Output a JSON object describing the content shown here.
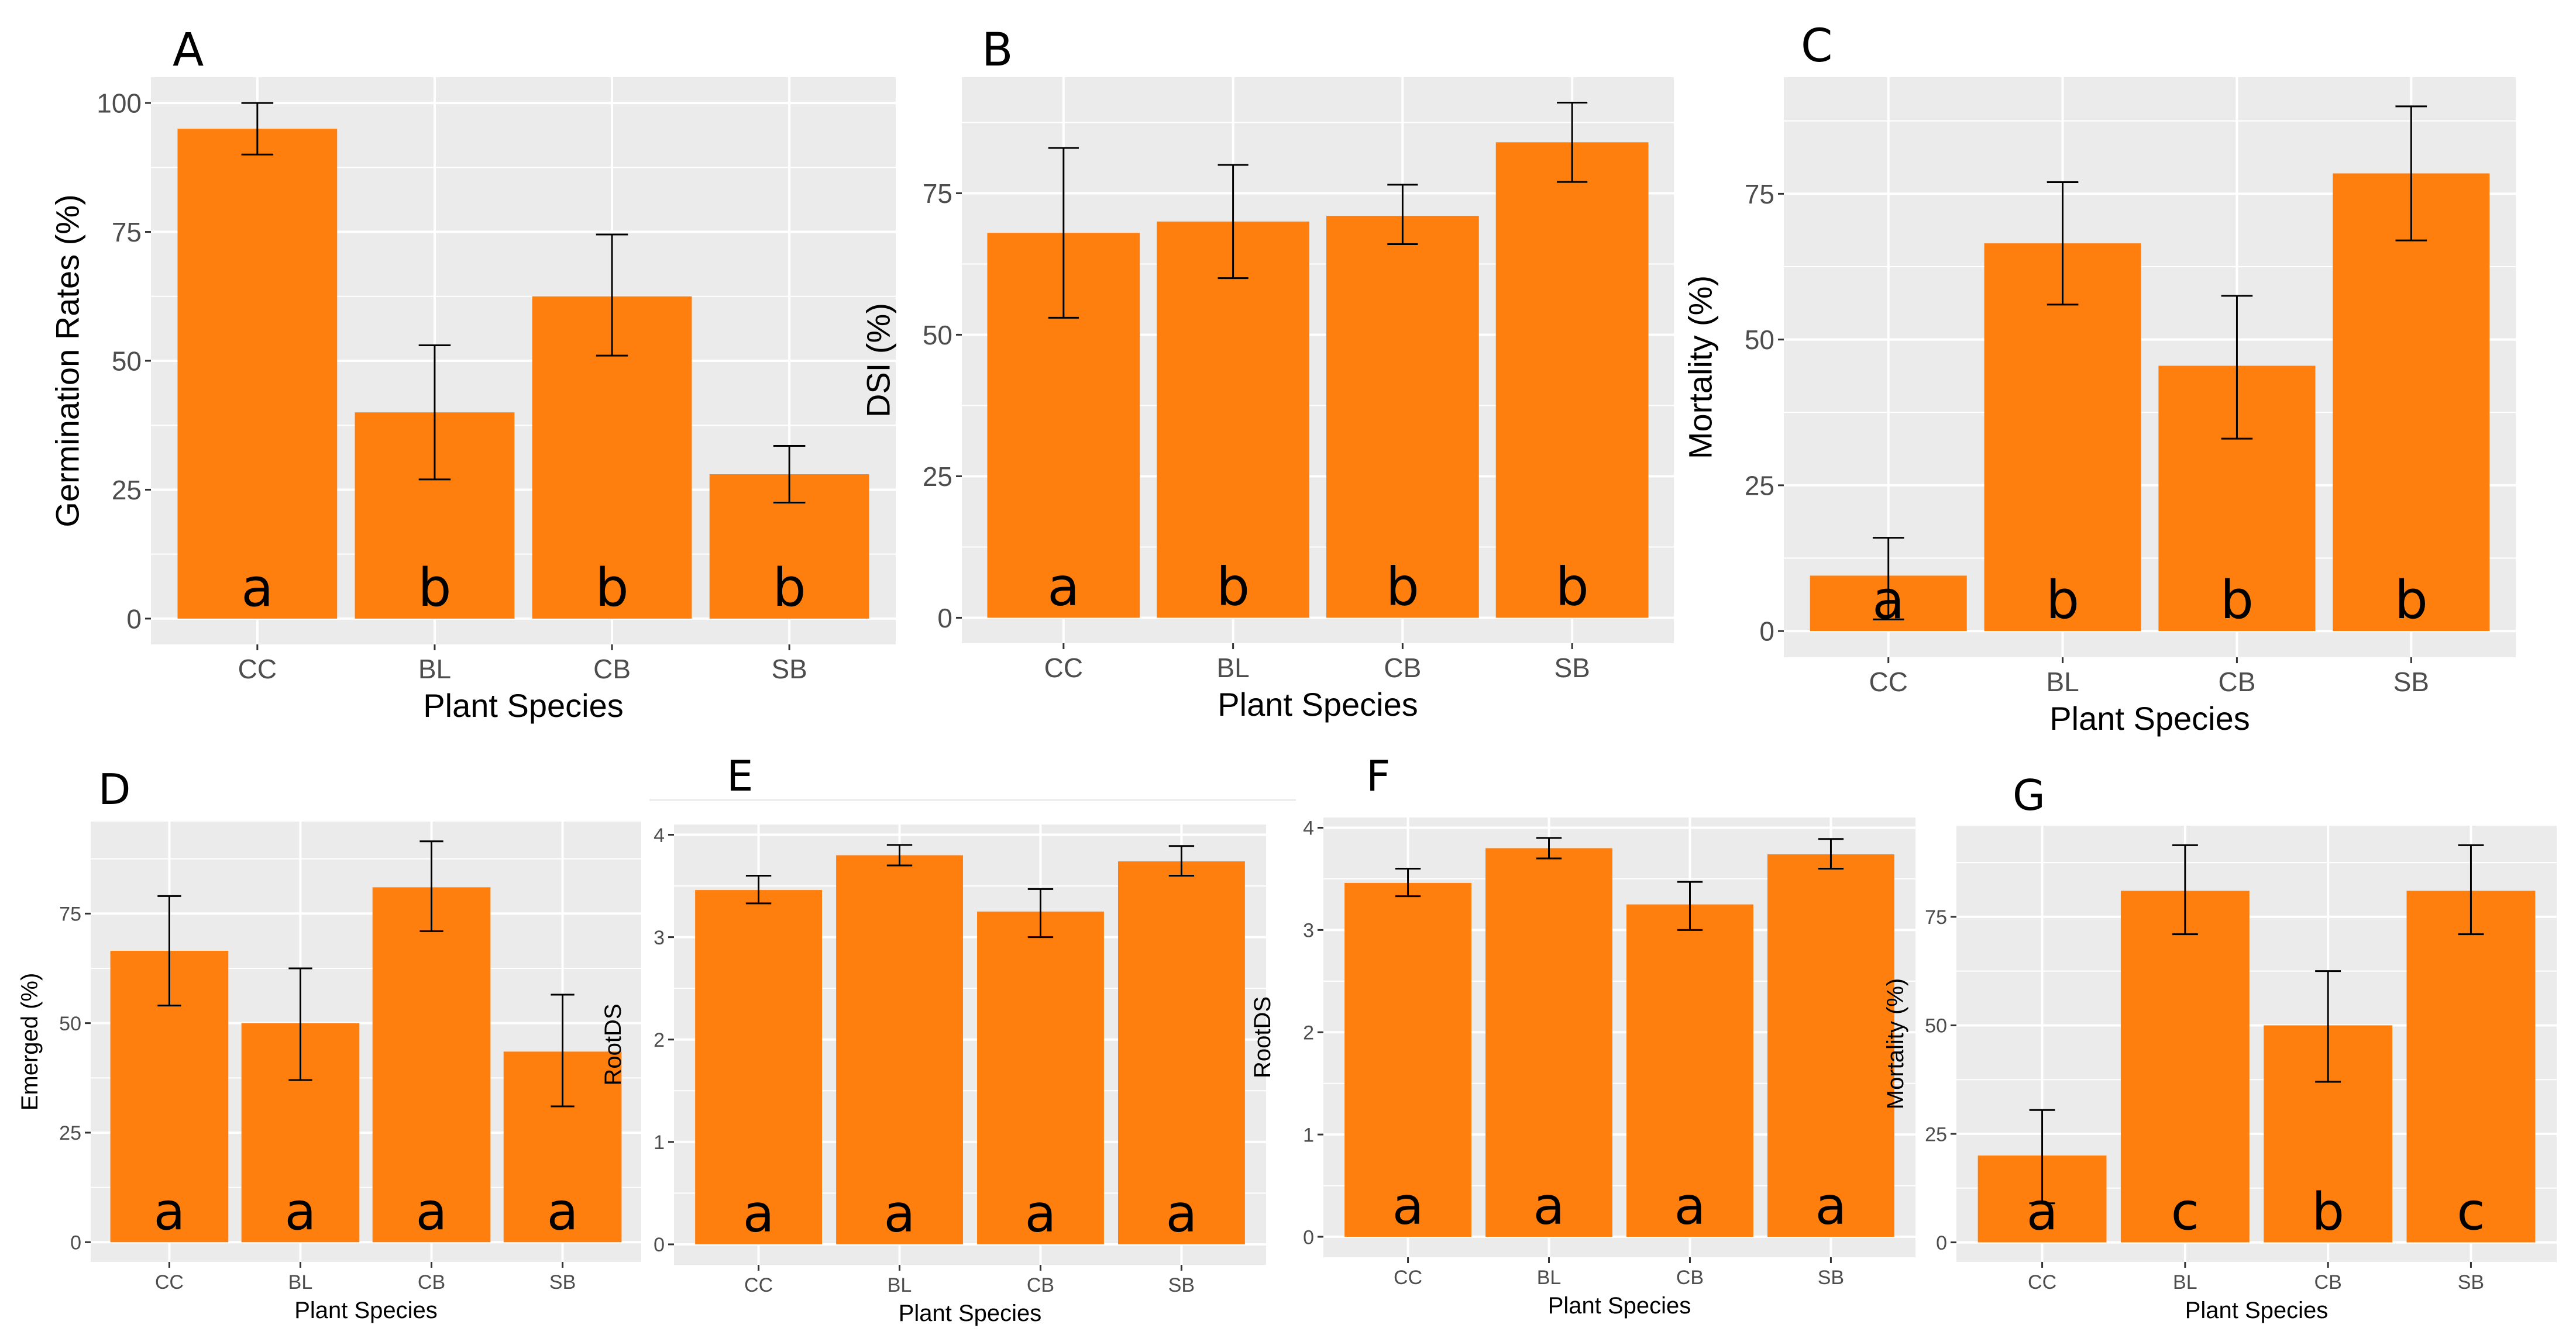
{
  "colors": {
    "bar": "#FF7F0E",
    "panel_bg": "#EBEBEB",
    "grid": "#FFFFFF",
    "error_bar": "#000000"
  },
  "chart_data": [
    {
      "panel": "A",
      "type": "bar",
      "categories": [
        "CC",
        "BL",
        "CB",
        "SB"
      ],
      "values": [
        95,
        40,
        62.5,
        28
      ],
      "error_low": [
        90,
        27,
        51,
        22.5
      ],
      "error_high": [
        100,
        53,
        74.5,
        33.5
      ],
      "letters": [
        "a",
        "b",
        "b",
        "b"
      ],
      "xlabel": "Plant Species",
      "ylabel": "Germination Rates (%)",
      "ylim": [
        -5,
        105
      ],
      "yticks": [
        0,
        25,
        50,
        75,
        100
      ],
      "grid": true
    },
    {
      "panel": "B",
      "type": "bar",
      "categories": [
        "CC",
        "BL",
        "CB",
        "SB"
      ],
      "values": [
        68,
        70,
        71,
        84
      ],
      "error_low": [
        53,
        60,
        66,
        77
      ],
      "error_high": [
        83,
        80,
        76.5,
        91
      ],
      "letters": [
        "a",
        "b",
        "b",
        "b"
      ],
      "xlabel": "Plant Species",
      "ylabel": "DSI (%)",
      "ylim": [
        -4.5,
        95.5
      ],
      "yticks": [
        0,
        25,
        50,
        75
      ],
      "grid": true
    },
    {
      "panel": "C",
      "type": "bar",
      "categories": [
        "CC",
        "BL",
        "CB",
        "SB"
      ],
      "values": [
        9.5,
        66.5,
        45.5,
        78.5
      ],
      "error_low": [
        2,
        56,
        33,
        67
      ],
      "error_high": [
        16,
        77,
        57.5,
        90
      ],
      "letters": [
        "a",
        "b",
        "b",
        "b"
      ],
      "xlabel": "Plant Species",
      "ylabel": "Mortality (%)",
      "ylim": [
        -4.5,
        95
      ],
      "yticks": [
        0,
        25,
        50,
        75
      ],
      "grid": true
    },
    {
      "panel": "D",
      "type": "bar",
      "categories": [
        "CC",
        "BL",
        "CB",
        "SB"
      ],
      "values": [
        66.5,
        50,
        81,
        43.5
      ],
      "error_low": [
        54,
        37,
        71,
        31
      ],
      "error_high": [
        79,
        62.5,
        91.5,
        56.5
      ],
      "letters": [
        "a",
        "a",
        "a",
        "a"
      ],
      "xlabel": "Plant Species",
      "ylabel": "Emerged (%)",
      "ylim": [
        -4.5,
        96
      ],
      "yticks": [
        0,
        25,
        50,
        75
      ],
      "grid": true
    },
    {
      "panel": "E",
      "type": "bar",
      "categories": [
        "CC",
        "BL",
        "CB",
        "SB"
      ],
      "values": [
        3.46,
        3.8,
        3.25,
        3.74
      ],
      "error_low": [
        3.33,
        3.7,
        3.0,
        3.6
      ],
      "error_high": [
        3.6,
        3.9,
        3.47,
        3.89
      ],
      "letters": [
        "a",
        "a",
        "a",
        "a"
      ],
      "xlabel": "Plant Species",
      "ylabel": "RootDS",
      "ylim": [
        -0.2,
        4.1
      ],
      "yticks": [
        0,
        1,
        2,
        3,
        4
      ],
      "grid": true
    },
    {
      "panel": "F",
      "type": "bar",
      "categories": [
        "CC",
        "BL",
        "CB",
        "SB"
      ],
      "values": [
        3.46,
        3.8,
        3.25,
        3.74
      ],
      "error_low": [
        3.33,
        3.7,
        3.0,
        3.6
      ],
      "error_high": [
        3.6,
        3.9,
        3.47,
        3.89
      ],
      "letters": [
        "a",
        "a",
        "a",
        "a"
      ],
      "xlabel": "Plant Species",
      "ylabel": "RootDS",
      "ylim": [
        -0.2,
        4.1
      ],
      "yticks": [
        0,
        1,
        2,
        3,
        4
      ],
      "grid": true
    },
    {
      "panel": "G",
      "type": "bar",
      "categories": [
        "CC",
        "BL",
        "CB",
        "SB"
      ],
      "values": [
        20,
        81,
        50,
        81
      ],
      "error_low": [
        9,
        71,
        37,
        71
      ],
      "error_high": [
        30.5,
        91.5,
        62.5,
        91.5
      ],
      "letters": [
        "a",
        "c",
        "b",
        "c"
      ],
      "xlabel": "Plant Species",
      "ylabel": "Mortality (%)",
      "ylim": [
        -4.5,
        96
      ],
      "yticks": [
        0,
        25,
        50,
        75
      ],
      "grid": true
    }
  ]
}
